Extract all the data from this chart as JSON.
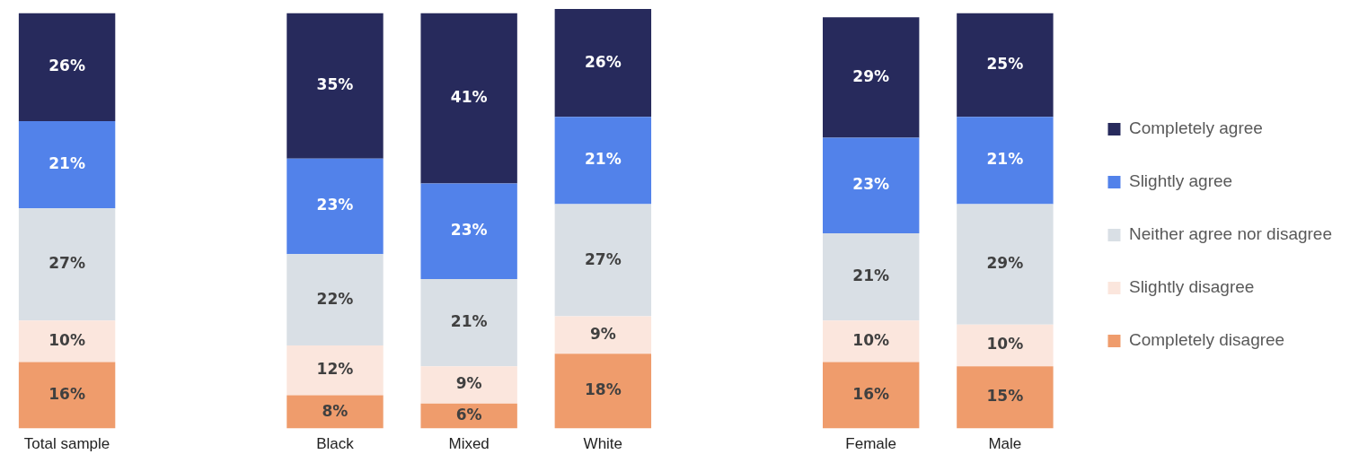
{
  "chart_data": {
    "type": "bar",
    "stacked": true,
    "legend": "right",
    "grid": false,
    "categories": [
      "Total sample",
      null,
      "Black",
      "Mixed",
      "White",
      null,
      "Female",
      "Male"
    ],
    "series": [
      {
        "name": "Completely disagree",
        "color": "#ef9c6c",
        "values": [
          16,
          null,
          8,
          6,
          18,
          null,
          16,
          15
        ],
        "value_labels": [
          "16%",
          null,
          "8%",
          "6%",
          "18%",
          null,
          "16%",
          "15%"
        ]
      },
      {
        "name": "Slightly disagree",
        "color": "#fbe6dd",
        "values": [
          10,
          null,
          12,
          9,
          9,
          null,
          10,
          10
        ],
        "value_labels": [
          "10%",
          null,
          "12%",
          "9%",
          "9%",
          null,
          "10%",
          "10%"
        ]
      },
      {
        "name": "Neither agree nor disagree",
        "color": "#d9dfe5",
        "values": [
          27,
          null,
          22,
          21,
          27,
          null,
          21,
          29
        ],
        "value_labels": [
          "27%",
          null,
          "22%",
          "21%",
          "27%",
          null,
          "21%",
          "29%"
        ]
      },
      {
        "name": "Slightly agree",
        "color": "#5282ea",
        "values": [
          21,
          null,
          23,
          23,
          21,
          null,
          23,
          21
        ],
        "value_labels": [
          "21%",
          null,
          "23%",
          "23%",
          "21%",
          null,
          "23%",
          "21%"
        ]
      },
      {
        "name": "Completely agree",
        "color": "#272a5c",
        "values": [
          26,
          null,
          35,
          41,
          26,
          null,
          29,
          25
        ],
        "value_labels": [
          "26%",
          null,
          "35%",
          "41%",
          "26%",
          null,
          "29%",
          "25%"
        ]
      }
    ]
  }
}
